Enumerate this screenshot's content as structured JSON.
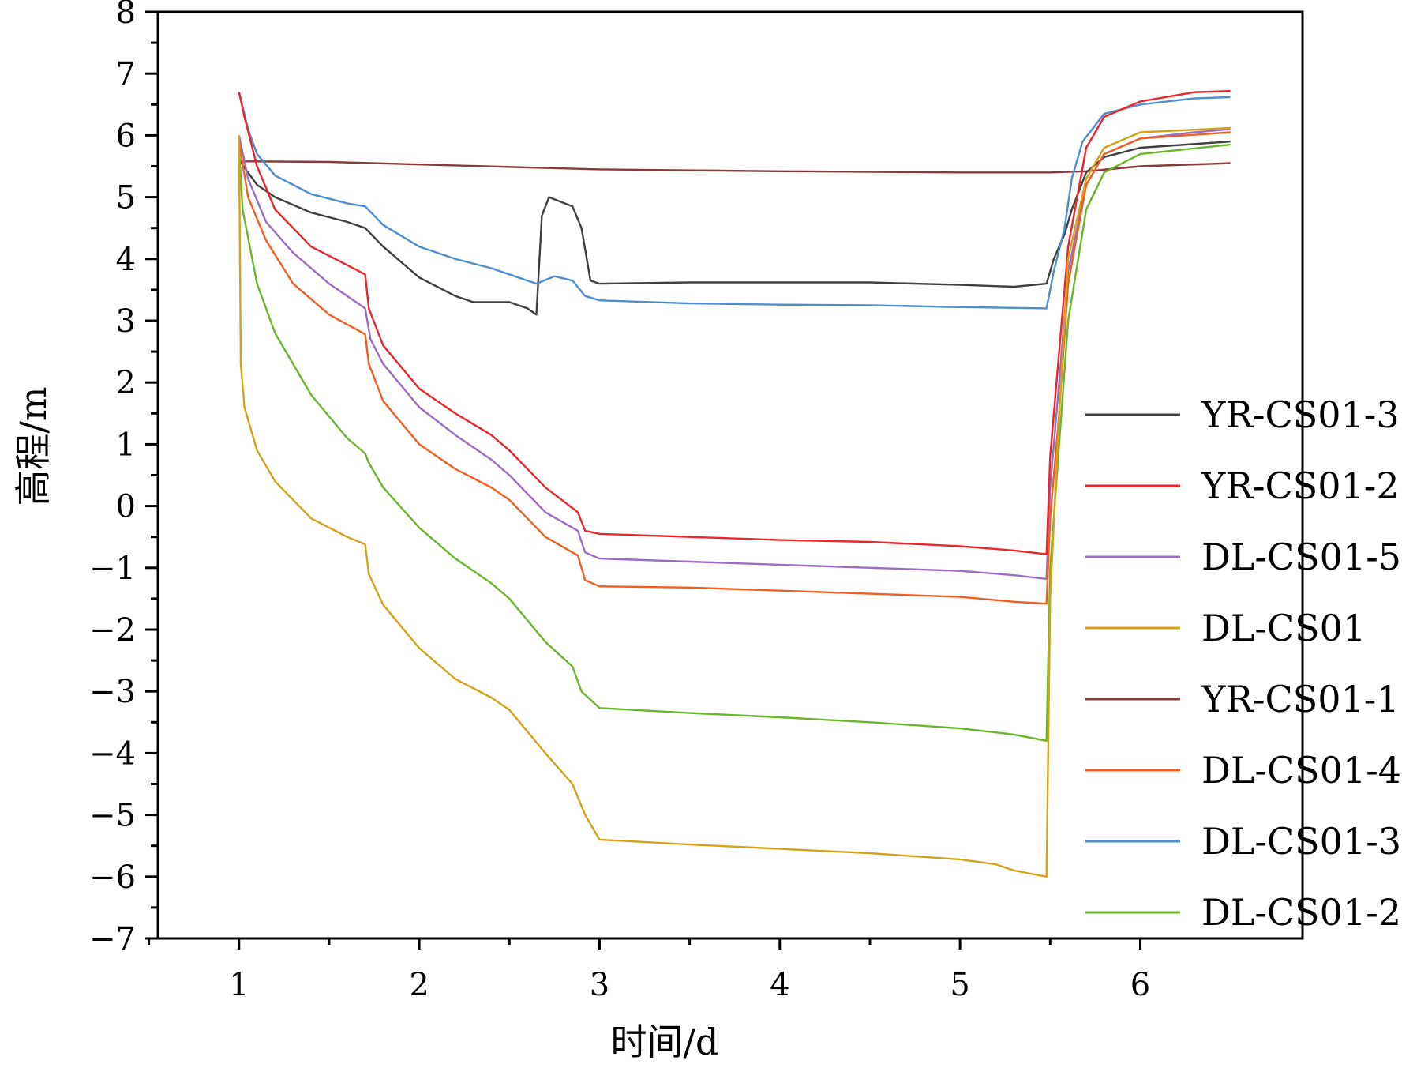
{
  "chart_data": {
    "type": "line",
    "xlabel": "时间/d",
    "ylabel": "高程/m",
    "xlim": [
      0.55,
      6.9
    ],
    "ylim": [
      -7,
      8
    ],
    "xticks": [
      1,
      2,
      3,
      4,
      5,
      6
    ],
    "yticks": [
      -7,
      -6,
      -5,
      -4,
      -3,
      -2,
      -1,
      0,
      1,
      2,
      3,
      4,
      5,
      6,
      7,
      8
    ],
    "legend_position": "right",
    "series": [
      {
        "name": "YR-CS01-3",
        "color": "#404040",
        "points": [
          [
            1.0,
            5.6
          ],
          [
            1.05,
            5.4
          ],
          [
            1.1,
            5.2
          ],
          [
            1.2,
            5.0
          ],
          [
            1.4,
            4.75
          ],
          [
            1.6,
            4.6
          ],
          [
            1.7,
            4.5
          ],
          [
            1.8,
            4.2
          ],
          [
            2.0,
            3.7
          ],
          [
            2.2,
            3.4
          ],
          [
            2.3,
            3.3
          ],
          [
            2.5,
            3.3
          ],
          [
            2.6,
            3.2
          ],
          [
            2.65,
            3.1
          ],
          [
            2.68,
            4.7
          ],
          [
            2.72,
            5.0
          ],
          [
            2.85,
            4.85
          ],
          [
            2.9,
            4.5
          ],
          [
            2.95,
            3.65
          ],
          [
            3.0,
            3.6
          ],
          [
            3.5,
            3.62
          ],
          [
            4.5,
            3.62
          ],
          [
            5.0,
            3.58
          ],
          [
            5.3,
            3.55
          ],
          [
            5.48,
            3.6
          ],
          [
            5.52,
            4.0
          ],
          [
            5.58,
            4.4
          ],
          [
            5.62,
            4.8
          ],
          [
            5.7,
            5.4
          ],
          [
            5.8,
            5.65
          ],
          [
            6.0,
            5.8
          ],
          [
            6.5,
            5.9
          ]
        ]
      },
      {
        "name": "YR-CS01-2",
        "color": "#e8262c",
        "points": [
          [
            1.0,
            6.7
          ],
          [
            1.03,
            6.3
          ],
          [
            1.1,
            5.5
          ],
          [
            1.2,
            4.8
          ],
          [
            1.4,
            4.2
          ],
          [
            1.6,
            3.9
          ],
          [
            1.7,
            3.75
          ],
          [
            1.72,
            3.2
          ],
          [
            1.8,
            2.6
          ],
          [
            2.0,
            1.9
          ],
          [
            2.2,
            1.5
          ],
          [
            2.4,
            1.15
          ],
          [
            2.5,
            0.9
          ],
          [
            2.7,
            0.3
          ],
          [
            2.88,
            -0.1
          ],
          [
            2.92,
            -0.4
          ],
          [
            3.0,
            -0.45
          ],
          [
            3.5,
            -0.5
          ],
          [
            4.0,
            -0.55
          ],
          [
            4.5,
            -0.58
          ],
          [
            5.0,
            -0.65
          ],
          [
            5.3,
            -0.72
          ],
          [
            5.48,
            -0.78
          ],
          [
            5.5,
            0.8
          ],
          [
            5.55,
            2.5
          ],
          [
            5.6,
            4.2
          ],
          [
            5.7,
            5.8
          ],
          [
            5.8,
            6.3
          ],
          [
            6.0,
            6.55
          ],
          [
            6.3,
            6.7
          ],
          [
            6.5,
            6.72
          ]
        ]
      },
      {
        "name": "DL-CS01-5",
        "color": "#9b6bc5",
        "points": [
          [
            1.0,
            6.0
          ],
          [
            1.05,
            5.3
          ],
          [
            1.15,
            4.6
          ],
          [
            1.3,
            4.1
          ],
          [
            1.5,
            3.6
          ],
          [
            1.7,
            3.2
          ],
          [
            1.73,
            2.7
          ],
          [
            1.8,
            2.3
          ],
          [
            2.0,
            1.6
          ],
          [
            2.2,
            1.15
          ],
          [
            2.4,
            0.75
          ],
          [
            2.5,
            0.5
          ],
          [
            2.7,
            -0.1
          ],
          [
            2.88,
            -0.4
          ],
          [
            2.92,
            -0.75
          ],
          [
            3.0,
            -0.85
          ],
          [
            3.5,
            -0.9
          ],
          [
            4.0,
            -0.95
          ],
          [
            4.5,
            -1.0
          ],
          [
            5.0,
            -1.05
          ],
          [
            5.3,
            -1.12
          ],
          [
            5.48,
            -1.18
          ],
          [
            5.5,
            0.3
          ],
          [
            5.55,
            2.0
          ],
          [
            5.6,
            3.8
          ],
          [
            5.7,
            5.2
          ],
          [
            5.8,
            5.7
          ],
          [
            6.0,
            5.95
          ],
          [
            6.3,
            6.05
          ],
          [
            6.5,
            6.1
          ]
        ]
      },
      {
        "name": "DL-CS01",
        "color": "#d4a218",
        "points": [
          [
            1.0,
            6.0
          ],
          [
            1.01,
            2.3
          ],
          [
            1.03,
            1.6
          ],
          [
            1.1,
            0.9
          ],
          [
            1.2,
            0.4
          ],
          [
            1.4,
            -0.2
          ],
          [
            1.6,
            -0.5
          ],
          [
            1.7,
            -0.62
          ],
          [
            1.72,
            -1.1
          ],
          [
            1.8,
            -1.6
          ],
          [
            2.0,
            -2.3
          ],
          [
            2.2,
            -2.8
          ],
          [
            2.4,
            -3.1
          ],
          [
            2.5,
            -3.3
          ],
          [
            2.7,
            -4.0
          ],
          [
            2.85,
            -4.5
          ],
          [
            2.92,
            -5.0
          ],
          [
            3.0,
            -5.4
          ],
          [
            3.5,
            -5.48
          ],
          [
            4.0,
            -5.55
          ],
          [
            4.5,
            -5.62
          ],
          [
            5.0,
            -5.72
          ],
          [
            5.2,
            -5.8
          ],
          [
            5.3,
            -5.9
          ],
          [
            5.48,
            -6.0
          ],
          [
            5.5,
            -1.5
          ],
          [
            5.55,
            1.5
          ],
          [
            5.6,
            4.0
          ],
          [
            5.7,
            5.3
          ],
          [
            5.8,
            5.8
          ],
          [
            6.0,
            6.05
          ],
          [
            6.5,
            6.12
          ]
        ]
      },
      {
        "name": "YR-CS01-1",
        "color": "#8b3a3a",
        "points": [
          [
            1.0,
            5.58
          ],
          [
            1.5,
            5.57
          ],
          [
            2.0,
            5.53
          ],
          [
            3.0,
            5.45
          ],
          [
            4.0,
            5.42
          ],
          [
            5.0,
            5.4
          ],
          [
            5.5,
            5.4
          ],
          [
            5.7,
            5.42
          ],
          [
            6.0,
            5.5
          ],
          [
            6.5,
            5.55
          ]
        ]
      },
      {
        "name": "DL-CS01-4",
        "color": "#f05f1f",
        "points": [
          [
            1.0,
            5.9
          ],
          [
            1.05,
            5.0
          ],
          [
            1.15,
            4.3
          ],
          [
            1.3,
            3.6
          ],
          [
            1.5,
            3.1
          ],
          [
            1.7,
            2.78
          ],
          [
            1.72,
            2.3
          ],
          [
            1.8,
            1.7
          ],
          [
            2.0,
            1.0
          ],
          [
            2.2,
            0.6
          ],
          [
            2.4,
            0.3
          ],
          [
            2.5,
            0.1
          ],
          [
            2.7,
            -0.5
          ],
          [
            2.88,
            -0.8
          ],
          [
            2.92,
            -1.2
          ],
          [
            3.0,
            -1.3
          ],
          [
            3.5,
            -1.32
          ],
          [
            4.0,
            -1.37
          ],
          [
            4.5,
            -1.42
          ],
          [
            5.0,
            -1.47
          ],
          [
            5.3,
            -1.55
          ],
          [
            5.48,
            -1.58
          ],
          [
            5.5,
            -0.2
          ],
          [
            5.55,
            1.5
          ],
          [
            5.6,
            3.6
          ],
          [
            5.7,
            5.2
          ],
          [
            5.8,
            5.7
          ],
          [
            6.0,
            5.95
          ],
          [
            6.5,
            6.05
          ]
        ]
      },
      {
        "name": "DL-CS01-3",
        "color": "#4f8dcf",
        "points": [
          [
            1.0,
            6.7
          ],
          [
            1.05,
            6.1
          ],
          [
            1.1,
            5.7
          ],
          [
            1.2,
            5.35
          ],
          [
            1.4,
            5.05
          ],
          [
            1.6,
            4.9
          ],
          [
            1.7,
            4.85
          ],
          [
            1.8,
            4.55
          ],
          [
            2.0,
            4.2
          ],
          [
            2.2,
            4.0
          ],
          [
            2.4,
            3.85
          ],
          [
            2.6,
            3.65
          ],
          [
            2.65,
            3.6
          ],
          [
            2.75,
            3.72
          ],
          [
            2.85,
            3.65
          ],
          [
            2.92,
            3.4
          ],
          [
            3.0,
            3.33
          ],
          [
            3.5,
            3.28
          ],
          [
            4.0,
            3.26
          ],
          [
            4.5,
            3.25
          ],
          [
            5.0,
            3.22
          ],
          [
            5.48,
            3.2
          ],
          [
            5.52,
            3.8
          ],
          [
            5.58,
            4.5
          ],
          [
            5.62,
            5.3
          ],
          [
            5.68,
            5.9
          ],
          [
            5.8,
            6.35
          ],
          [
            6.0,
            6.5
          ],
          [
            6.3,
            6.6
          ],
          [
            6.5,
            6.62
          ]
        ]
      },
      {
        "name": "DL-CS01-2",
        "color": "#6bb52b",
        "points": [
          [
            1.0,
            5.8
          ],
          [
            1.02,
            4.8
          ],
          [
            1.1,
            3.6
          ],
          [
            1.2,
            2.8
          ],
          [
            1.4,
            1.8
          ],
          [
            1.6,
            1.1
          ],
          [
            1.7,
            0.85
          ],
          [
            1.72,
            0.7
          ],
          [
            1.8,
            0.3
          ],
          [
            2.0,
            -0.35
          ],
          [
            2.2,
            -0.85
          ],
          [
            2.4,
            -1.25
          ],
          [
            2.5,
            -1.5
          ],
          [
            2.7,
            -2.2
          ],
          [
            2.85,
            -2.6
          ],
          [
            2.9,
            -3.0
          ],
          [
            3.0,
            -3.27
          ],
          [
            3.5,
            -3.35
          ],
          [
            4.0,
            -3.42
          ],
          [
            4.5,
            -3.5
          ],
          [
            5.0,
            -3.6
          ],
          [
            5.3,
            -3.7
          ],
          [
            5.48,
            -3.8
          ],
          [
            5.5,
            -1.0
          ],
          [
            5.55,
            1.0
          ],
          [
            5.6,
            3.0
          ],
          [
            5.7,
            4.8
          ],
          [
            5.8,
            5.4
          ],
          [
            6.0,
            5.7
          ],
          [
            6.5,
            5.85
          ]
        ]
      }
    ]
  }
}
